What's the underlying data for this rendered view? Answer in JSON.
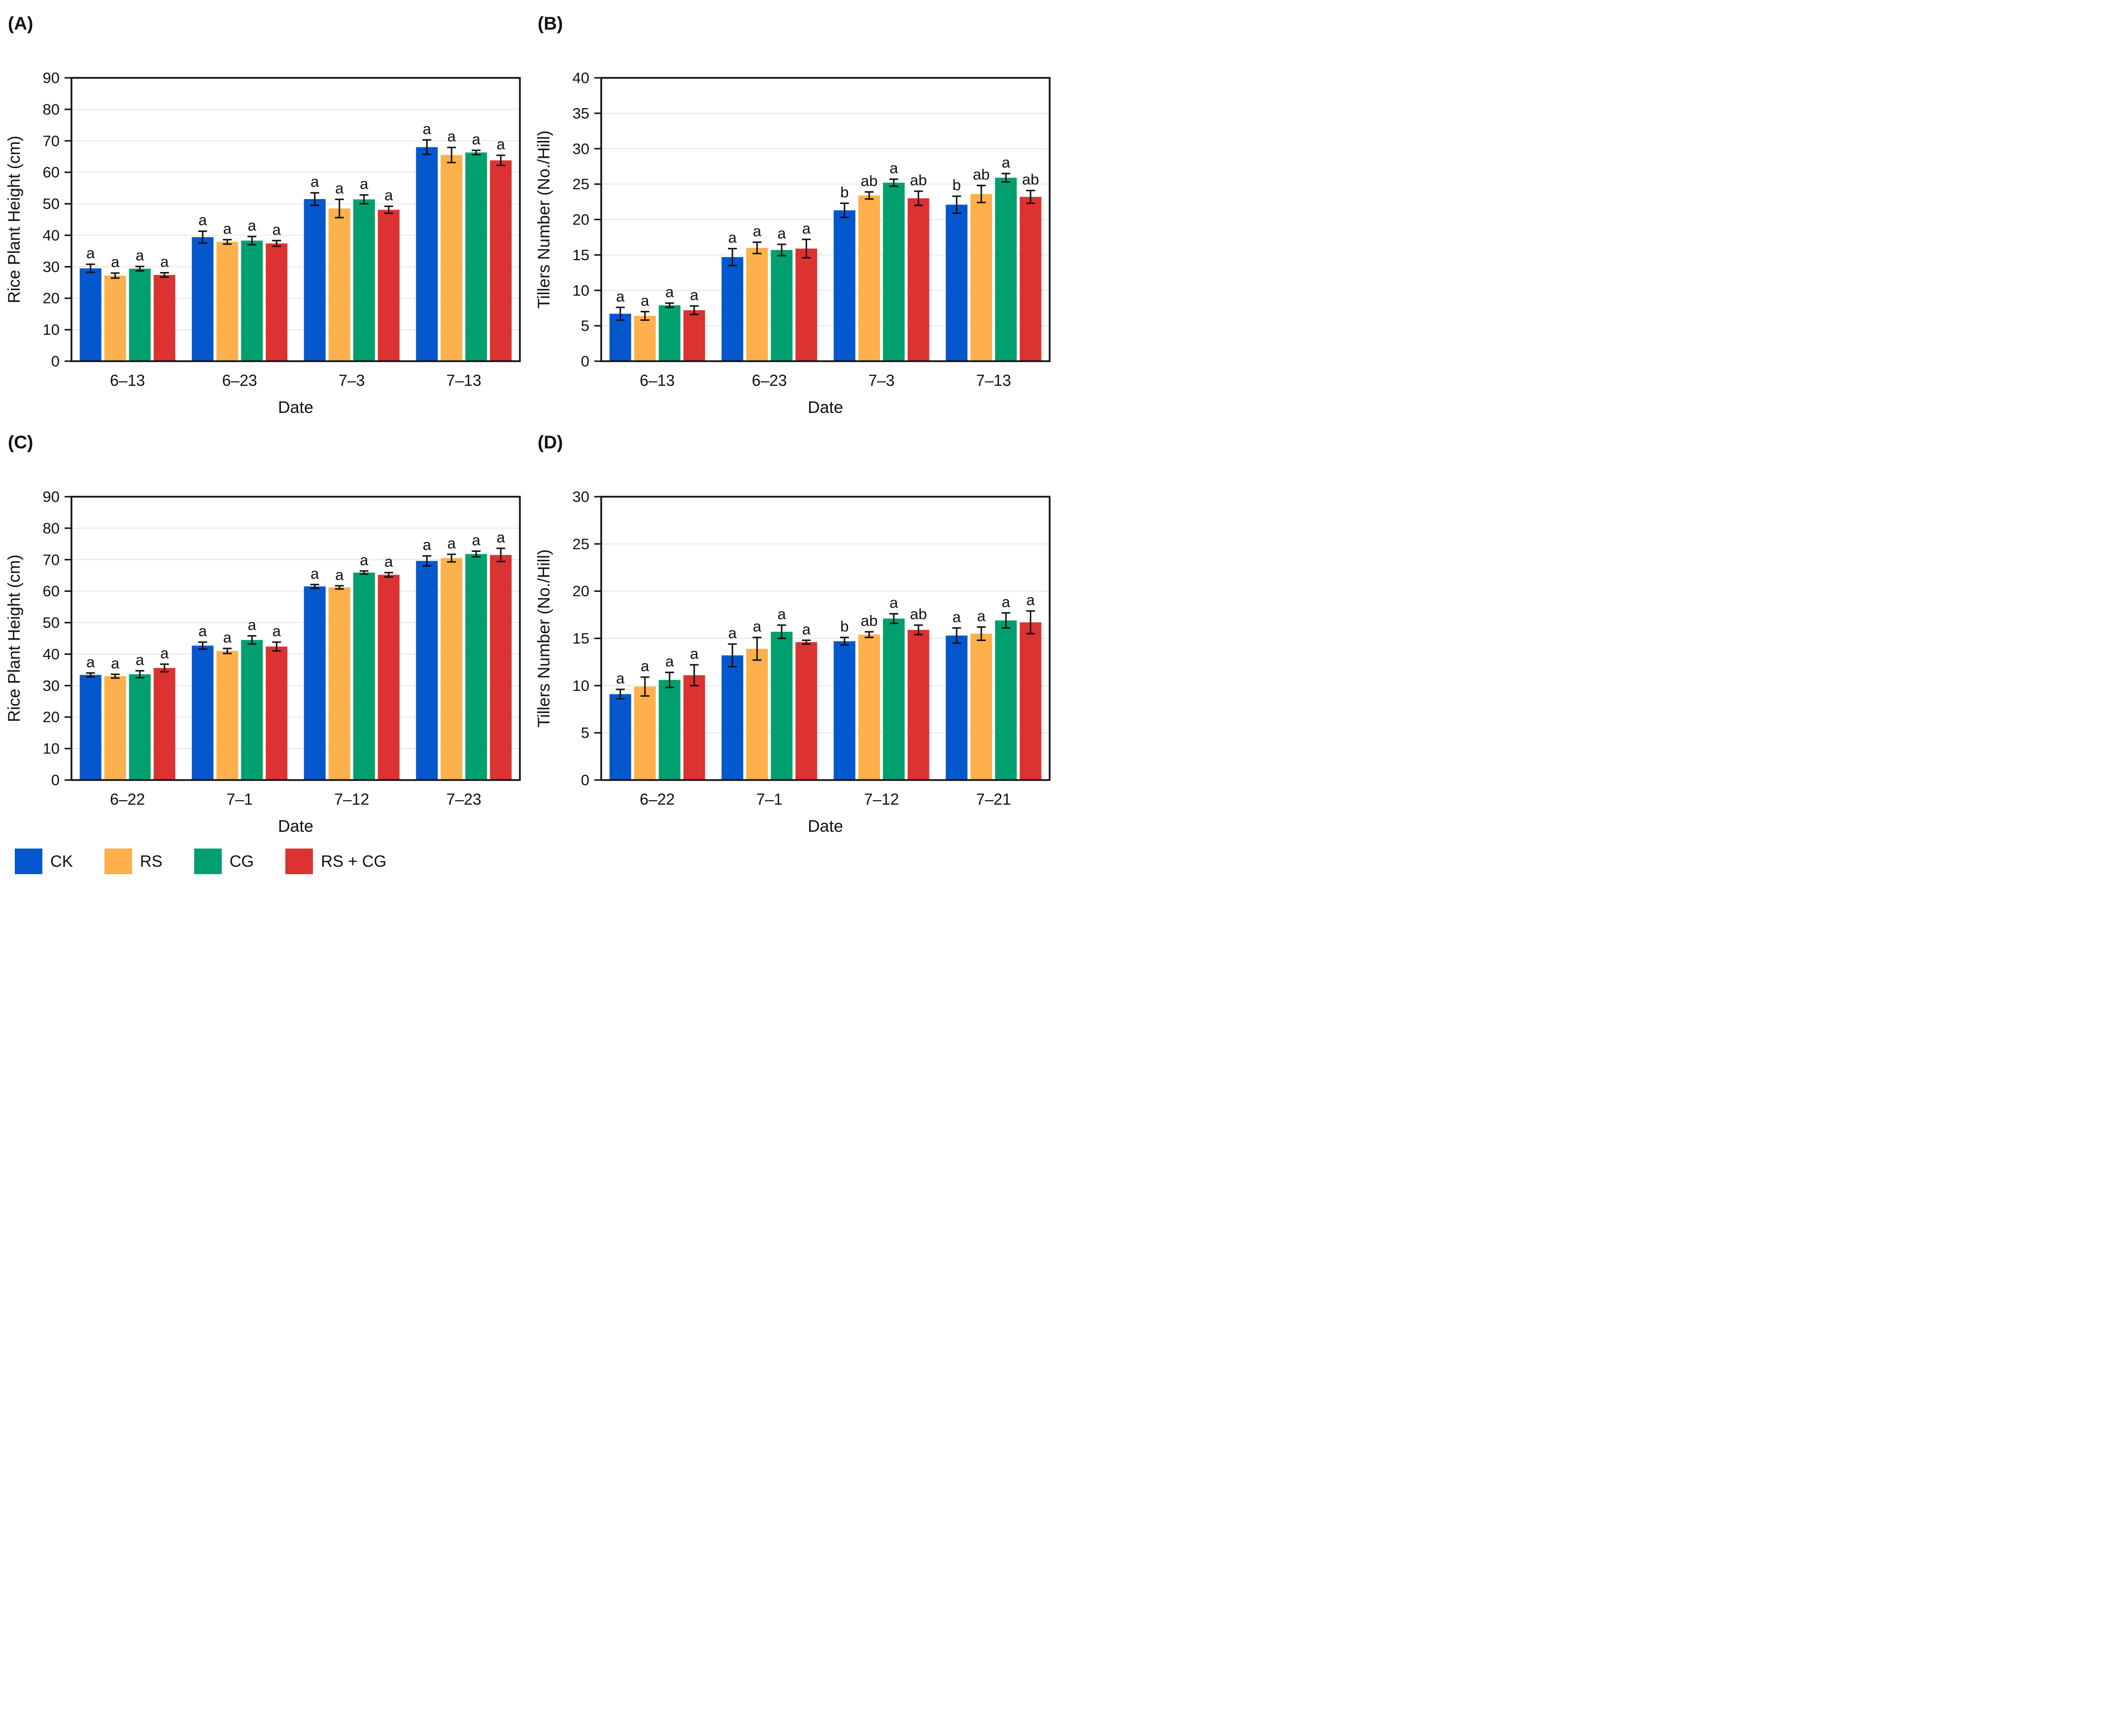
{
  "figure": {
    "legend": {
      "position": "bottom-left",
      "items": [
        {
          "label": "CK",
          "color": "#0457cd"
        },
        {
          "label": "RS",
          "color": "#fdb04b"
        },
        {
          "label": "CG",
          "color": "#00a06e"
        },
        {
          "label": "RS + CG",
          "color": "#dc3232"
        }
      ]
    },
    "colors": {
      "axis": "#111111",
      "gridline": "#e8e8e8",
      "background": "#ffffff"
    }
  },
  "chart_data": [
    {
      "panel_label": "(A)",
      "type": "bar",
      "title": "",
      "xlabel": "Date",
      "ylabel": "Rice Plant Height (cm)",
      "ylim": [
        0,
        90
      ],
      "ytick_step": 10,
      "grid": true,
      "categories": [
        "6–13",
        "6–23",
        "7–3",
        "7–13"
      ],
      "series": [
        {
          "name": "CK",
          "color": "#0457cd",
          "values": [
            29.5,
            39.4,
            51.5,
            68.0
          ],
          "errors": [
            1.3,
            1.9,
            2.0,
            2.3
          ],
          "letters": [
            "a",
            "a",
            "a",
            "a"
          ]
        },
        {
          "name": "RS",
          "color": "#fdb04b",
          "values": [
            27.2,
            37.9,
            48.5,
            65.5
          ],
          "errors": [
            0.8,
            0.7,
            2.9,
            2.4
          ],
          "letters": [
            "a",
            "a",
            "a",
            "a"
          ]
        },
        {
          "name": "CG",
          "color": "#00a06e",
          "values": [
            29.4,
            38.3,
            51.4,
            66.3
          ],
          "errors": [
            0.7,
            1.3,
            1.4,
            0.7
          ],
          "letters": [
            "a",
            "a",
            "a",
            "a"
          ]
        },
        {
          "name": "RS + CG",
          "color": "#dc3232",
          "values": [
            27.4,
            37.4,
            48.1,
            63.8
          ],
          "errors": [
            0.7,
            0.9,
            1.1,
            1.6
          ],
          "letters": [
            "a",
            "a",
            "a",
            "a"
          ]
        }
      ]
    },
    {
      "panel_label": "(B)",
      "type": "bar",
      "title": "",
      "xlabel": "Date",
      "ylabel": "Tillers Number (No./Hill)",
      "ylim": [
        0,
        40
      ],
      "ytick_step": 5,
      "grid": true,
      "categories": [
        "6–13",
        "6–23",
        "7–3",
        "7–13"
      ],
      "series": [
        {
          "name": "CK",
          "color": "#0457cd",
          "values": [
            6.7,
            14.7,
            21.3,
            22.1
          ],
          "errors": [
            0.9,
            1.2,
            1.0,
            1.2
          ],
          "letters": [
            "a",
            "a",
            "b",
            "b"
          ]
        },
        {
          "name": "RS",
          "color": "#fdb04b",
          "values": [
            6.4,
            16.0,
            23.4,
            23.6
          ],
          "errors": [
            0.6,
            0.8,
            0.5,
            1.2
          ],
          "letters": [
            "a",
            "a",
            "ab",
            "ab"
          ]
        },
        {
          "name": "CG",
          "color": "#00a06e",
          "values": [
            7.9,
            15.7,
            25.2,
            25.9
          ],
          "errors": [
            0.3,
            0.8,
            0.5,
            0.6
          ],
          "letters": [
            "a",
            "a",
            "a",
            "a"
          ]
        },
        {
          "name": "RS + CG",
          "color": "#dc3232",
          "values": [
            7.2,
            15.9,
            23.0,
            23.2
          ],
          "errors": [
            0.6,
            1.3,
            1.0,
            0.9
          ],
          "letters": [
            "a",
            "a",
            "ab",
            "ab"
          ]
        }
      ]
    },
    {
      "panel_label": "(C)",
      "type": "bar",
      "title": "",
      "xlabel": "Date",
      "ylabel": "Rice Plant Height (cm)",
      "ylim": [
        0,
        90
      ],
      "ytick_step": 10,
      "grid": true,
      "categories": [
        "6–22",
        "7–1",
        "7–12",
        "7–23"
      ],
      "series": [
        {
          "name": "CK",
          "color": "#0457cd",
          "values": [
            33.4,
            42.7,
            61.5,
            69.6
          ],
          "errors": [
            0.6,
            1.1,
            0.6,
            1.6
          ],
          "letters": [
            "a",
            "a",
            "a",
            "a"
          ]
        },
        {
          "name": "RS",
          "color": "#fdb04b",
          "values": [
            33.0,
            41.0,
            61.2,
            70.5
          ],
          "errors": [
            0.6,
            0.8,
            0.5,
            1.2
          ],
          "letters": [
            "a",
            "a",
            "a",
            "a"
          ]
        },
        {
          "name": "CG",
          "color": "#00a06e",
          "values": [
            33.6,
            44.5,
            65.9,
            71.8
          ],
          "errors": [
            1.1,
            1.3,
            0.5,
            0.9
          ],
          "letters": [
            "a",
            "a",
            "a",
            "a"
          ]
        },
        {
          "name": "RS + CG",
          "color": "#dc3232",
          "values": [
            35.6,
            42.4,
            65.2,
            71.5
          ],
          "errors": [
            1.2,
            1.4,
            0.7,
            2.1
          ],
          "letters": [
            "a",
            "a",
            "a",
            "a"
          ]
        }
      ]
    },
    {
      "panel_label": "(D)",
      "type": "bar",
      "title": "",
      "xlabel": "Date",
      "ylabel": "Tillers Number (No./Hill)",
      "ylim": [
        0,
        30
      ],
      "ytick_step": 5,
      "grid": true,
      "categories": [
        "6–22",
        "7–1",
        "7–12",
        "7–21"
      ],
      "series": [
        {
          "name": "CK",
          "color": "#0457cd",
          "values": [
            9.1,
            13.2,
            14.7,
            15.3
          ],
          "errors": [
            0.5,
            1.2,
            0.4,
            0.8
          ],
          "letters": [
            "a",
            "a",
            "b",
            "a"
          ]
        },
        {
          "name": "RS",
          "color": "#fdb04b",
          "values": [
            9.9,
            13.9,
            15.4,
            15.5
          ],
          "errors": [
            1.0,
            1.2,
            0.3,
            0.7
          ],
          "letters": [
            "a",
            "a",
            "ab",
            "a"
          ]
        },
        {
          "name": "CG",
          "color": "#00a06e",
          "values": [
            10.6,
            15.7,
            17.1,
            16.9
          ],
          "errors": [
            0.8,
            0.7,
            0.5,
            0.8
          ],
          "letters": [
            "a",
            "a",
            "a",
            "a"
          ]
        },
        {
          "name": "RS + CG",
          "color": "#dc3232",
          "values": [
            11.1,
            14.6,
            15.9,
            16.7
          ],
          "errors": [
            1.1,
            0.2,
            0.5,
            1.2
          ],
          "letters": [
            "a",
            "a",
            "ab",
            "a"
          ]
        }
      ]
    }
  ]
}
